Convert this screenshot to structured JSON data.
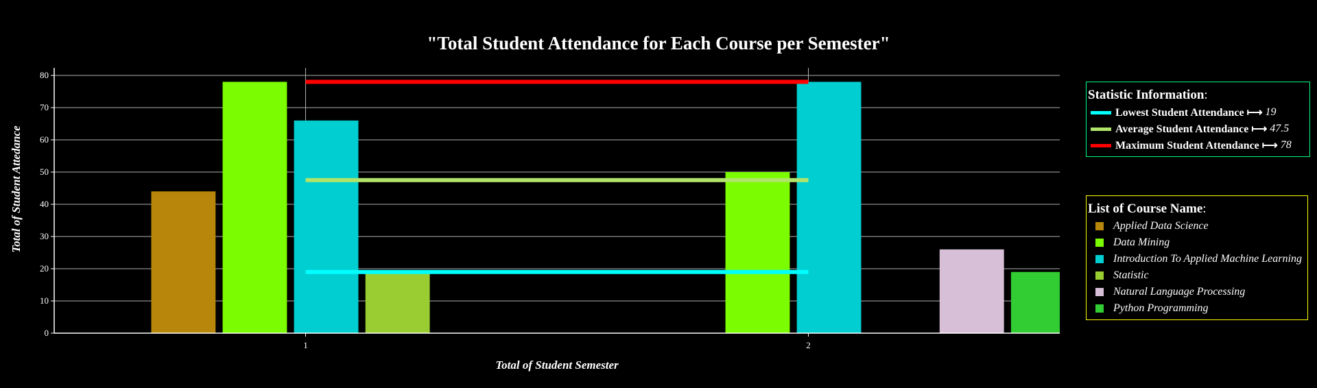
{
  "chart_data": {
    "type": "bar",
    "title": "\"Total Student Attendance for Each Course per Semester\"",
    "xlabel": "Total of Student Semester",
    "ylabel": "Total of Student Attedance",
    "ylim": [
      0,
      82
    ],
    "yticks": [
      0,
      10,
      20,
      30,
      40,
      50,
      60,
      70,
      80
    ],
    "xticks": [
      {
        "x": 1,
        "label": "1"
      },
      {
        "x": 2,
        "label": "2"
      }
    ],
    "xlim": [
      0.5,
      2.5
    ],
    "bar_width": 0.128,
    "grid": true,
    "bars": [
      {
        "course": "Applied Data Science",
        "x": 0.757,
        "value": 44
      },
      {
        "course": "Data Mining",
        "x": 0.899,
        "value": 78
      },
      {
        "course": "Introduction To Applied Machine Learning",
        "x": 1.041,
        "value": 66
      },
      {
        "course": "Statistic",
        "x": 1.183,
        "value": 19
      },
      {
        "course": "Data Mining",
        "x": 1.899,
        "value": 50
      },
      {
        "course": "Introduction To Applied Machine Learning",
        "x": 2.041,
        "value": 78
      },
      {
        "course": "Natural Language Processing",
        "x": 2.325,
        "value": 26
      },
      {
        "course": "Python Programming",
        "x": 2.467,
        "value": 19
      }
    ],
    "reference_lines": [
      {
        "name": "Lowest Student Attendance",
        "value": 19,
        "display": "19",
        "color": "#00ffff",
        "x_from": 1,
        "x_to": 2
      },
      {
        "name": "Average Student Attendance",
        "value": 47.5,
        "display": "47.5",
        "color": "#b0e46a",
        "x_from": 1,
        "x_to": 2
      },
      {
        "name": "Maximum Student Attendance",
        "value": 78,
        "display": "78",
        "color": "#ff0000",
        "x_from": 1,
        "x_to": 2
      }
    ],
    "courses": [
      {
        "name": "Applied Data Science",
        "color": "#b8860b"
      },
      {
        "name": "Data Mining",
        "color": "#7cfc00"
      },
      {
        "name": "Introduction To Applied Machine Learning",
        "color": "#00ced1"
      },
      {
        "name": "Statistic",
        "color": "#9acd32"
      },
      {
        "name": "Natural Language Processing",
        "color": "#d8bfd8"
      },
      {
        "name": "Python Programming",
        "color": "#32cd32"
      }
    ],
    "legend_placement": "right"
  },
  "legends": {
    "stats_title": "Statistic Information",
    "courses_title": "List of Course Name",
    "stats_border_color": "#00ff7f",
    "courses_border_color": "#ffff00",
    "arrow": "⟼"
  }
}
